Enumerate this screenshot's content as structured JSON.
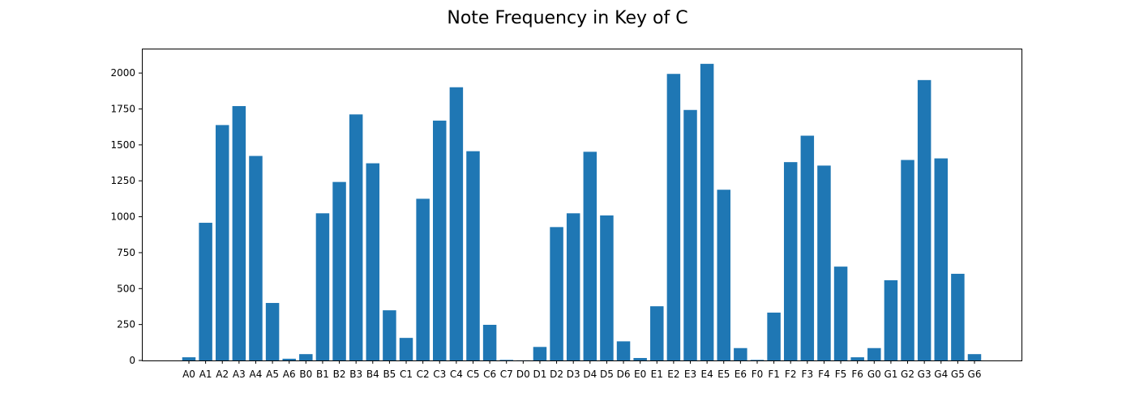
{
  "chart_data": {
    "type": "bar",
    "title": "Note Frequency in Key of C",
    "xlabel": "",
    "ylabel": "",
    "ylim": [
      0,
      2170
    ],
    "yticks": [
      0,
      250,
      500,
      750,
      1000,
      1250,
      1500,
      1750,
      2000
    ],
    "grid": false,
    "color": "#1f77b4",
    "categories": [
      "A0",
      "A1",
      "A2",
      "A3",
      "A4",
      "A5",
      "A6",
      "B0",
      "B1",
      "B2",
      "B3",
      "B4",
      "B5",
      "C1",
      "C2",
      "C3",
      "C4",
      "C5",
      "C6",
      "C7",
      "D0",
      "D1",
      "D2",
      "D3",
      "D4",
      "D5",
      "D6",
      "E0",
      "E1",
      "E2",
      "E3",
      "E4",
      "E5",
      "E6",
      "F0",
      "F1",
      "F2",
      "F3",
      "F4",
      "F5",
      "F6",
      "G0",
      "G1",
      "G2",
      "G3",
      "G4",
      "G5",
      "G6"
    ],
    "values": [
      22,
      958,
      1638,
      1770,
      1423,
      400,
      12,
      44,
      1024,
      1242,
      1712,
      1372,
      349,
      157,
      1125,
      1669,
      1901,
      1456,
      248,
      4,
      1,
      94,
      928,
      1024,
      1452,
      1009,
      133,
      17,
      377,
      1994,
      1743,
      2064,
      1188,
      86,
      4,
      333,
      1380,
      1564,
      1356,
      653,
      22,
      86,
      558,
      1395,
      1951,
      1406,
      603,
      44
    ]
  }
}
